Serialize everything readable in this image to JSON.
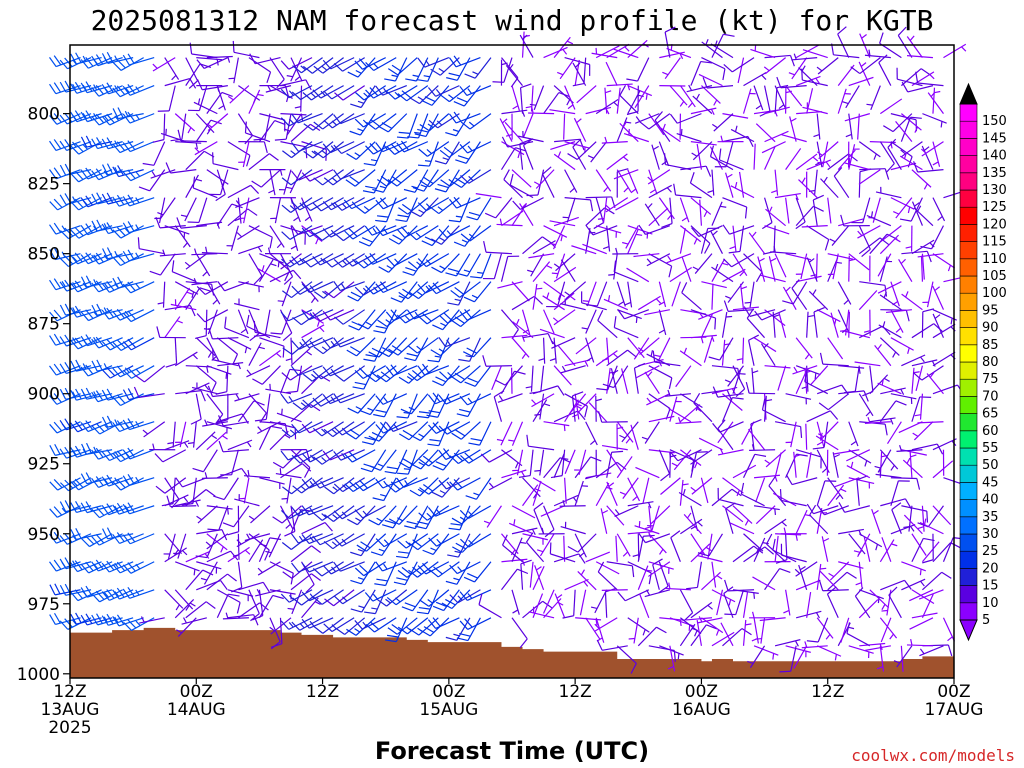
{
  "chart_data": {
    "type": "wind_barb_timeheight",
    "title": "2025081312 NAM forecast wind profile (kt) for KGTB",
    "xlabel": "Forecast Time (UTC)",
    "credit": "coolwx.com/models",
    "colors": {
      "terrain": "#a0522d",
      "credit": "#d62728"
    },
    "y_axis": {
      "ticks": [
        "800",
        "825",
        "850",
        "875",
        "900",
        "925",
        "950",
        "975",
        "1000"
      ],
      "ylim": [
        1000,
        775
      ],
      "inverted": true
    },
    "x_axis": {
      "ticks": [
        {
          "h": 0,
          "l1": "12Z",
          "l2": "13AUG",
          "l3": "2025"
        },
        {
          "h": 12,
          "l1": "00Z",
          "l2": "14AUG",
          "l3": ""
        },
        {
          "h": 24,
          "l1": "12Z",
          "l2": "",
          "l3": ""
        },
        {
          "h": 36,
          "l1": "00Z",
          "l2": "15AUG",
          "l3": ""
        },
        {
          "h": 48,
          "l1": "12Z",
          "l2": "",
          "l3": ""
        },
        {
          "h": 60,
          "l1": "00Z",
          "l2": "16AUG",
          "l3": ""
        },
        {
          "h": 72,
          "l1": "12Z",
          "l2": "",
          "l3": ""
        },
        {
          "h": 84,
          "l1": "00Z",
          "l2": "17AUG",
          "l3": ""
        }
      ],
      "xlim_hours": [
        0,
        84
      ]
    },
    "surface_pressure_hpa": [
      [
        0,
        985.3
      ],
      [
        2,
        985.3
      ],
      [
        4,
        984.4
      ],
      [
        7,
        983.6
      ],
      [
        10,
        984.4
      ],
      [
        13,
        984.4
      ],
      [
        17,
        984.4
      ],
      [
        20,
        985.3
      ],
      [
        22,
        986.1
      ],
      [
        25,
        987.0
      ],
      [
        32,
        987.9
      ],
      [
        34,
        988.7
      ],
      [
        41,
        990.4
      ],
      [
        43,
        991.2
      ],
      [
        45,
        992.1
      ],
      [
        52,
        994.7
      ],
      [
        59,
        994.7
      ],
      [
        60,
        995.5
      ],
      [
        61,
        994.7
      ],
      [
        63,
        995.5
      ],
      [
        72,
        995.5
      ],
      [
        77,
        995.5
      ],
      [
        79,
        994.7
      ],
      [
        81,
        993.8
      ],
      [
        84,
        993.8
      ]
    ],
    "barb_levels_hpa": [
      780,
      790,
      800,
      810,
      820,
      830,
      840,
      850,
      860,
      870,
      880,
      890,
      900,
      910,
      920,
      930,
      940,
      950,
      960,
      970,
      980,
      990
    ],
    "barb_regimes": [
      {
        "hours": [
          0,
          8
        ],
        "speed_kt": [
          20,
          25
        ],
        "dir_deg": [
          240,
          260
        ]
      },
      {
        "hours": [
          9,
          22
        ],
        "speed_kt": [
          5,
          10
        ],
        "dir_deg": [
          20,
          300
        ]
      },
      {
        "hours": [
          23,
          28
        ],
        "speed_kt": [
          10,
          15
        ],
        "dir_deg": [
          230,
          250
        ]
      },
      {
        "hours": [
          28,
          40
        ],
        "speed_kt": [
          15,
          20
        ],
        "dir_deg": [
          200,
          250
        ]
      },
      {
        "hours": [
          40,
          84
        ],
        "speed_kt": [
          0,
          10
        ],
        "dir_deg": [
          0,
          360
        ]
      }
    ],
    "colorbar": {
      "levels_kt": [
        5,
        10,
        15,
        20,
        25,
        30,
        35,
        40,
        45,
        50,
        55,
        60,
        65,
        70,
        75,
        80,
        85,
        90,
        95,
        100,
        105,
        110,
        115,
        120,
        125,
        130,
        135,
        140,
        145,
        150
      ],
      "colors": [
        "#8b00ff",
        "#5a00e0",
        "#2020d8",
        "#0030e8",
        "#0050f0",
        "#0070ff",
        "#0090ff",
        "#00b0ff",
        "#00c8d8",
        "#00e0b0",
        "#00f070",
        "#20e830",
        "#60f000",
        "#a0f000",
        "#e0f000",
        "#ffff00",
        "#ffe000",
        "#ffc000",
        "#ffa000",
        "#ff8000",
        "#ff6000",
        "#ff4000",
        "#ff2000",
        "#ff0000",
        "#ff0040",
        "#ff0080",
        "#ff00a0",
        "#ff00c8",
        "#ff00e8",
        "#ff00ff"
      ]
    }
  }
}
